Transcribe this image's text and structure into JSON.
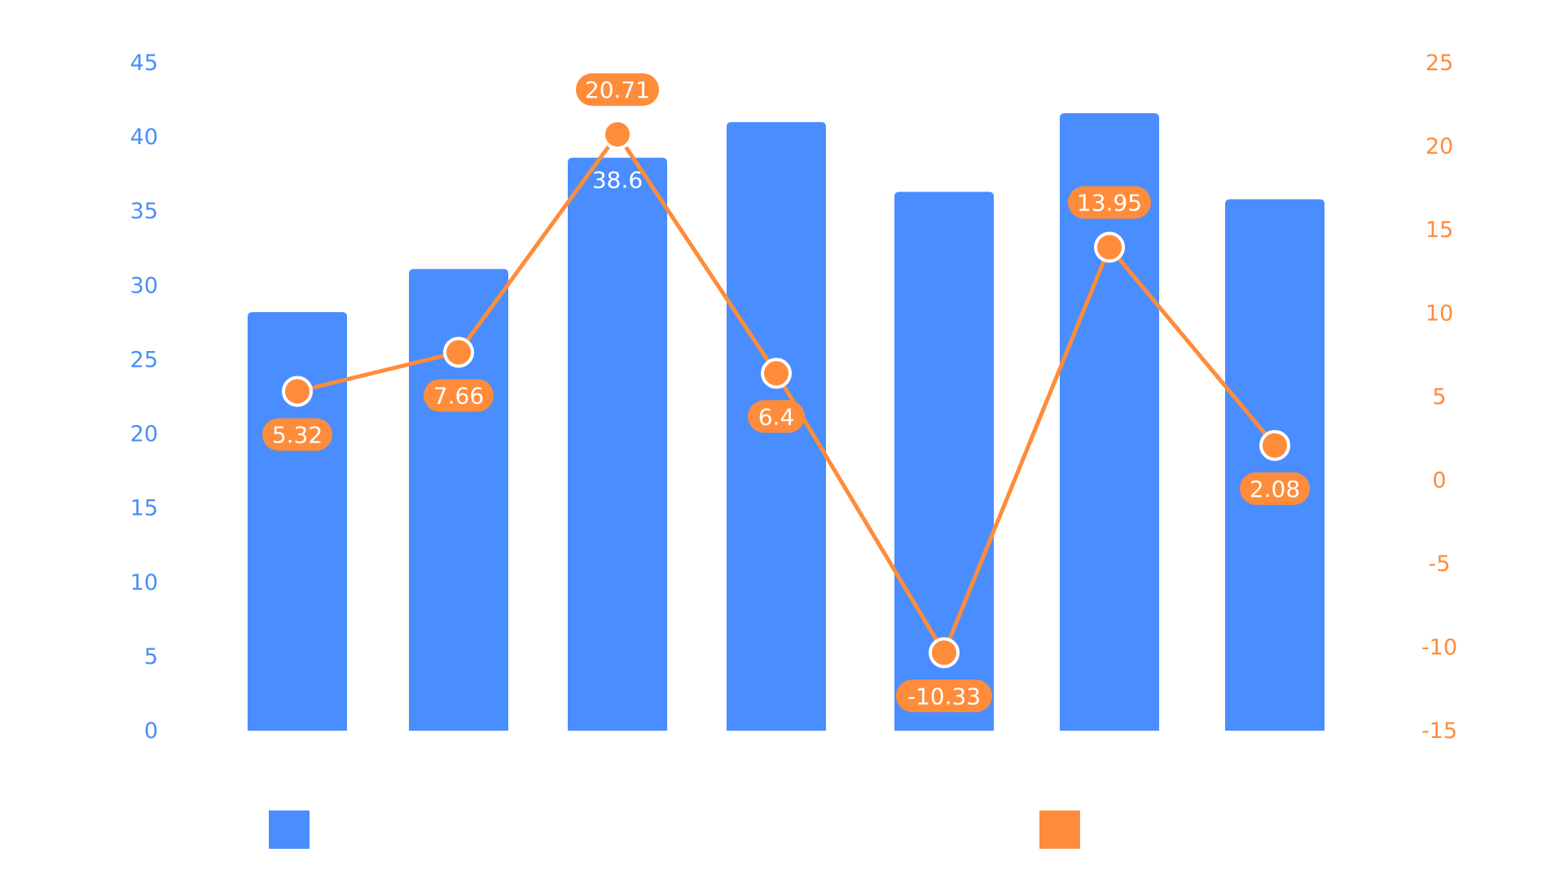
{
  "colors": {
    "bar": "#4a8dff",
    "line": "#ff8c3a",
    "left_axis_text": "#4a8dff",
    "right_axis_text": "#ff8c3a",
    "label_text_on_bar": "#ffffff",
    "badge_text": "#ffffff",
    "marker_stroke": "#ffffff"
  },
  "chart_data": {
    "type": "bar",
    "title": "",
    "xlabel": "",
    "ylabel": "",
    "categories": [
      "",
      "",
      "",
      "",
      "",
      "",
      ""
    ],
    "series": [
      {
        "type": "bar",
        "axis": "left",
        "color": "#4a8dff",
        "values": [
          28.2,
          31.1,
          38.6,
          41.0,
          36.3,
          41.6,
          35.8
        ],
        "data_labels": [
          "",
          "",
          "38.6",
          "",
          "",
          "",
          ""
        ]
      },
      {
        "type": "line",
        "axis": "right",
        "color": "#ff8c3a",
        "values": [
          5.32,
          7.66,
          20.71,
          6.4,
          -10.33,
          13.95,
          2.08
        ],
        "data_labels": [
          "5.32",
          "7.66",
          "20.71",
          "6.4",
          "-10.33",
          "13.95",
          "2.08"
        ],
        "label_positions": [
          "below",
          "below",
          "above",
          "below",
          "below",
          "above",
          "below"
        ]
      }
    ],
    "y_left": {
      "lim": [
        0,
        45
      ],
      "ticks": [
        "0",
        "5",
        "10",
        "15",
        "20",
        "25",
        "30",
        "35",
        "40",
        "45"
      ]
    },
    "y_right": {
      "lim": [
        -15,
        25
      ],
      "ticks": [
        "-15",
        "-10",
        "-5",
        "0",
        "5",
        "10",
        "15",
        "20",
        "25"
      ]
    },
    "grid": false,
    "legend": {
      "position": "bottom",
      "items": [
        {
          "marker_color": "#4a8dff",
          "label": ""
        },
        {
          "marker_color": "#ff8c3a",
          "label": ""
        }
      ]
    }
  }
}
